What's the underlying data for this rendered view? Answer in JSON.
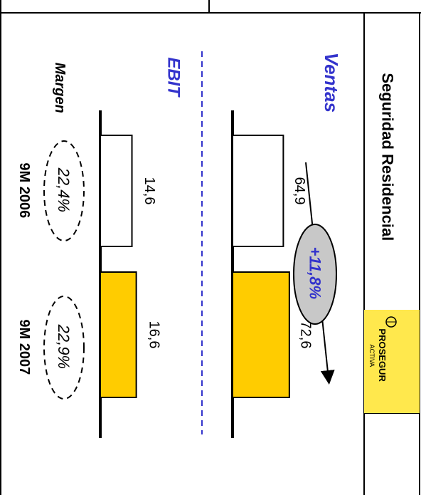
{
  "header": {
    "title": "Seguridad Residencial",
    "logo_text": "PROSEGUR",
    "logo_subtext": "ACTIVA",
    "logo_color": "#FFE84D"
  },
  "chart_data": [
    {
      "type": "bar",
      "title": "Ventas",
      "categories": [
        "9M 2006",
        "9M 2007"
      ],
      "values": [
        64.9,
        72.6
      ],
      "value_labels": [
        "64,9",
        "72,6"
      ],
      "growth_label": "+11,8%",
      "colors": [
        "#FFFFFF",
        "#FFCC00"
      ],
      "title_color": "#3333CC"
    },
    {
      "type": "bar",
      "title": "EBIT",
      "categories": [
        "9M 2006",
        "9M 2007"
      ],
      "values": [
        14.6,
        16.6
      ],
      "value_labels": [
        "14,6",
        "16,6"
      ],
      "colors": [
        "#FFFFFF",
        "#FFCC00"
      ],
      "title_color": "#3333CC"
    }
  ],
  "margin": {
    "label": "Margen",
    "values": [
      "22,4%",
      "22,9%"
    ]
  },
  "periods": [
    "9M 2006",
    "9M 2007"
  ]
}
